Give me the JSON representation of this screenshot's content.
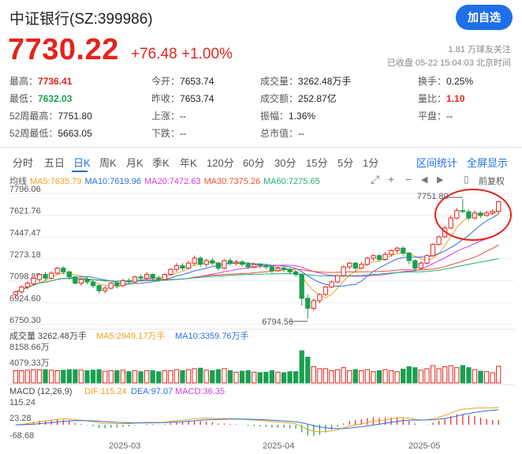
{
  "header": {
    "title": "中证银行(SZ:399986)",
    "add_button": "加自选",
    "price": "7730.22",
    "change": "+76.48",
    "change_pct": "+1.00%",
    "followers": "1.81 万球友关注",
    "status": "已收盘 05-22 15:04:03 北京时间"
  },
  "stats": [
    {
      "label": "最高：",
      "value": "7736.41",
      "color": "red"
    },
    {
      "label": "今开：",
      "value": "7653.74",
      "color": "plain"
    },
    {
      "label": "成交量：",
      "value": "3262.48万手",
      "color": "plain"
    },
    {
      "label": "换手：",
      "value": "0.25%",
      "color": "plain"
    },
    {
      "label": "最低：",
      "value": "7632.03",
      "color": "green"
    },
    {
      "label": "昨收：",
      "value": "7653.74",
      "color": "plain"
    },
    {
      "label": "成交额：",
      "value": "252.87亿",
      "color": "plain"
    },
    {
      "label": "量比：",
      "value": "1.10",
      "color": "red"
    },
    {
      "label": "52周最高：",
      "value": "7751.80",
      "color": "plain"
    },
    {
      "label": "上涨：",
      "value": "--",
      "color": "plain"
    },
    {
      "label": "振幅：",
      "value": "1.36%",
      "color": "plain"
    },
    {
      "label": "平盘：",
      "value": "--",
      "color": "plain"
    },
    {
      "label": "52周最低：",
      "value": "5663.05",
      "color": "plain"
    },
    {
      "label": "下跌：",
      "value": "--",
      "color": "plain"
    },
    {
      "label": "总市值：",
      "value": "--",
      "color": "plain"
    }
  ],
  "tabs": [
    "分时",
    "五日",
    "日K",
    "周K",
    "月K",
    "季K",
    "年K",
    "120分",
    "60分",
    "30分",
    "15分",
    "5分",
    "1分"
  ],
  "active_tab": "日K",
  "links": {
    "range_stats": "区间统计",
    "fullscreen": "全屏显示"
  },
  "ma_legend": {
    "prefix": "均线",
    "items": [
      {
        "text": "MA5:7635.79",
        "color": "#f0a020"
      },
      {
        "text": "MA10:7619.96",
        "color": "#2e6fd8"
      },
      {
        "text": "MA20:7472.63",
        "color": "#d23cd8"
      },
      {
        "text": "MA30:7375.26",
        "color": "#f05030"
      },
      {
        "text": "MA60:7275.65",
        "color": "#20b070"
      }
    ],
    "restore": "前复权"
  },
  "toolbar_icons": [
    "expand-icon",
    "zoom-in-icon",
    "zoom-out-icon",
    "left-icon",
    "right-icon"
  ],
  "chart_data": {
    "type": "candlestick",
    "y_ticks": [
      "7796.06",
      "7621.76",
      "7447.47",
      "7273.18",
      "7098.89",
      "6924.60",
      "6750.30"
    ],
    "ylim": [
      6750.3,
      7796.06
    ],
    "x_labels": [
      "2025-03",
      "2025-04",
      "2025-05"
    ],
    "annotations": {
      "high": "7751.80",
      "low": "6794.56"
    },
    "volume": {
      "title": "成交量",
      "value": "3262.48万手",
      "ma5": "MA5:2949.17万手",
      "ma10": "MA10:3359.76万手",
      "y_ticks": [
        "8158.66万",
        "4079.33万"
      ]
    },
    "macd": {
      "title": "MACD (12,26,9)",
      "dif": "DIF:115.24",
      "dea": "DEA:97.07",
      "macd": "MACD:36.35",
      "y_ticks": [
        "115.24",
        "23.28",
        "-68.68"
      ]
    },
    "candles": [
      [
        6990,
        7010,
        6960,
        7020
      ],
      [
        7010,
        7050,
        7000,
        7060
      ],
      [
        7050,
        7080,
        7030,
        7095
      ],
      [
        7075,
        7120,
        7060,
        7130
      ],
      [
        7110,
        7150,
        7090,
        7160
      ],
      [
        7150,
        7120,
        7100,
        7170
      ],
      [
        7120,
        7160,
        7110,
        7175
      ],
      [
        7160,
        7200,
        7150,
        7210
      ],
      [
        7200,
        7170,
        7150,
        7215
      ],
      [
        7170,
        7130,
        7110,
        7180
      ],
      [
        7130,
        7080,
        7070,
        7140
      ],
      [
        7080,
        7110,
        7060,
        7125
      ],
      [
        7110,
        7090,
        7070,
        7130
      ],
      [
        7090,
        7060,
        7040,
        7105
      ],
      [
        7060,
        7020,
        7000,
        7070
      ],
      [
        7020,
        7040,
        7000,
        7055
      ],
      [
        7040,
        7080,
        7030,
        7090
      ],
      [
        7080,
        7060,
        7040,
        7100
      ],
      [
        7060,
        7100,
        7050,
        7115
      ],
      [
        7100,
        7090,
        7070,
        7120
      ],
      [
        7090,
        7130,
        7080,
        7140
      ],
      [
        7130,
        7120,
        7100,
        7150
      ],
      [
        7120,
        7150,
        7110,
        7170
      ],
      [
        7150,
        7120,
        7100,
        7160
      ],
      [
        7120,
        7110,
        7090,
        7140
      ],
      [
        7110,
        7150,
        7100,
        7160
      ],
      [
        7150,
        7190,
        7140,
        7200
      ],
      [
        7190,
        7220,
        7170,
        7240
      ],
      [
        7220,
        7200,
        7180,
        7240
      ],
      [
        7200,
        7240,
        7190,
        7260
      ],
      [
        7240,
        7280,
        7220,
        7300
      ],
      [
        7280,
        7230,
        7210,
        7295
      ],
      [
        7230,
        7260,
        7210,
        7275
      ],
      [
        7260,
        7240,
        7220,
        7280
      ],
      [
        7240,
        7200,
        7180,
        7250
      ],
      [
        7200,
        7260,
        7190,
        7270
      ],
      [
        7260,
        7240,
        7220,
        7280
      ],
      [
        7240,
        7250,
        7220,
        7265
      ],
      [
        7250,
        7230,
        7210,
        7265
      ],
      [
        7230,
        7210,
        7190,
        7250
      ],
      [
        7210,
        7230,
        7200,
        7245
      ],
      [
        7230,
        7220,
        7200,
        7240
      ],
      [
        7220,
        7210,
        7190,
        7235
      ],
      [
        7210,
        7180,
        7160,
        7220
      ],
      [
        7180,
        7200,
        7170,
        7215
      ],
      [
        7200,
        7190,
        7170,
        7210
      ],
      [
        7190,
        7170,
        7150,
        7200
      ],
      [
        7170,
        7150,
        7130,
        7180
      ],
      [
        7150,
        6960,
        6900,
        7160
      ],
      [
        6960,
        6880,
        6794.56,
        6990
      ],
      [
        6880,
        6940,
        6860,
        6960
      ],
      [
        6940,
        6990,
        6920,
        7000
      ],
      [
        6990,
        7050,
        6980,
        7060
      ],
      [
        7050,
        7090,
        7040,
        7100
      ],
      [
        7090,
        7140,
        7080,
        7150
      ],
      [
        7140,
        7210,
        7130,
        7220
      ],
      [
        7210,
        7240,
        7190,
        7250
      ],
      [
        7240,
        7200,
        7180,
        7250
      ],
      [
        7200,
        7230,
        7190,
        7250
      ],
      [
        7230,
        7280,
        7220,
        7290
      ],
      [
        7280,
        7300,
        7260,
        7310
      ],
      [
        7300,
        7270,
        7250,
        7310
      ],
      [
        7270,
        7310,
        7260,
        7330
      ],
      [
        7310,
        7340,
        7290,
        7350
      ],
      [
        7340,
        7360,
        7320,
        7370
      ],
      [
        7360,
        7320,
        7300,
        7375
      ],
      [
        7320,
        7260,
        7230,
        7330
      ],
      [
        7260,
        7200,
        7180,
        7270
      ],
      [
        7200,
        7240,
        7190,
        7255
      ],
      [
        7240,
        7300,
        7230,
        7310
      ],
      [
        7300,
        7390,
        7290,
        7400
      ],
      [
        7390,
        7450,
        7380,
        7460
      ],
      [
        7450,
        7520,
        7440,
        7540
      ],
      [
        7520,
        7600,
        7510,
        7620
      ],
      [
        7600,
        7660,
        7590,
        7680
      ],
      [
        7660,
        7651.8,
        7640,
        7751.8
      ],
      [
        7650,
        7600,
        7580,
        7670
      ],
      [
        7600,
        7640,
        7590,
        7660
      ],
      [
        7640,
        7620,
        7600,
        7655
      ],
      [
        7620,
        7640,
        7610,
        7660
      ],
      [
        7640,
        7653.74,
        7630,
        7670
      ],
      [
        7653.74,
        7730.22,
        7632.03,
        7736.41
      ]
    ]
  }
}
